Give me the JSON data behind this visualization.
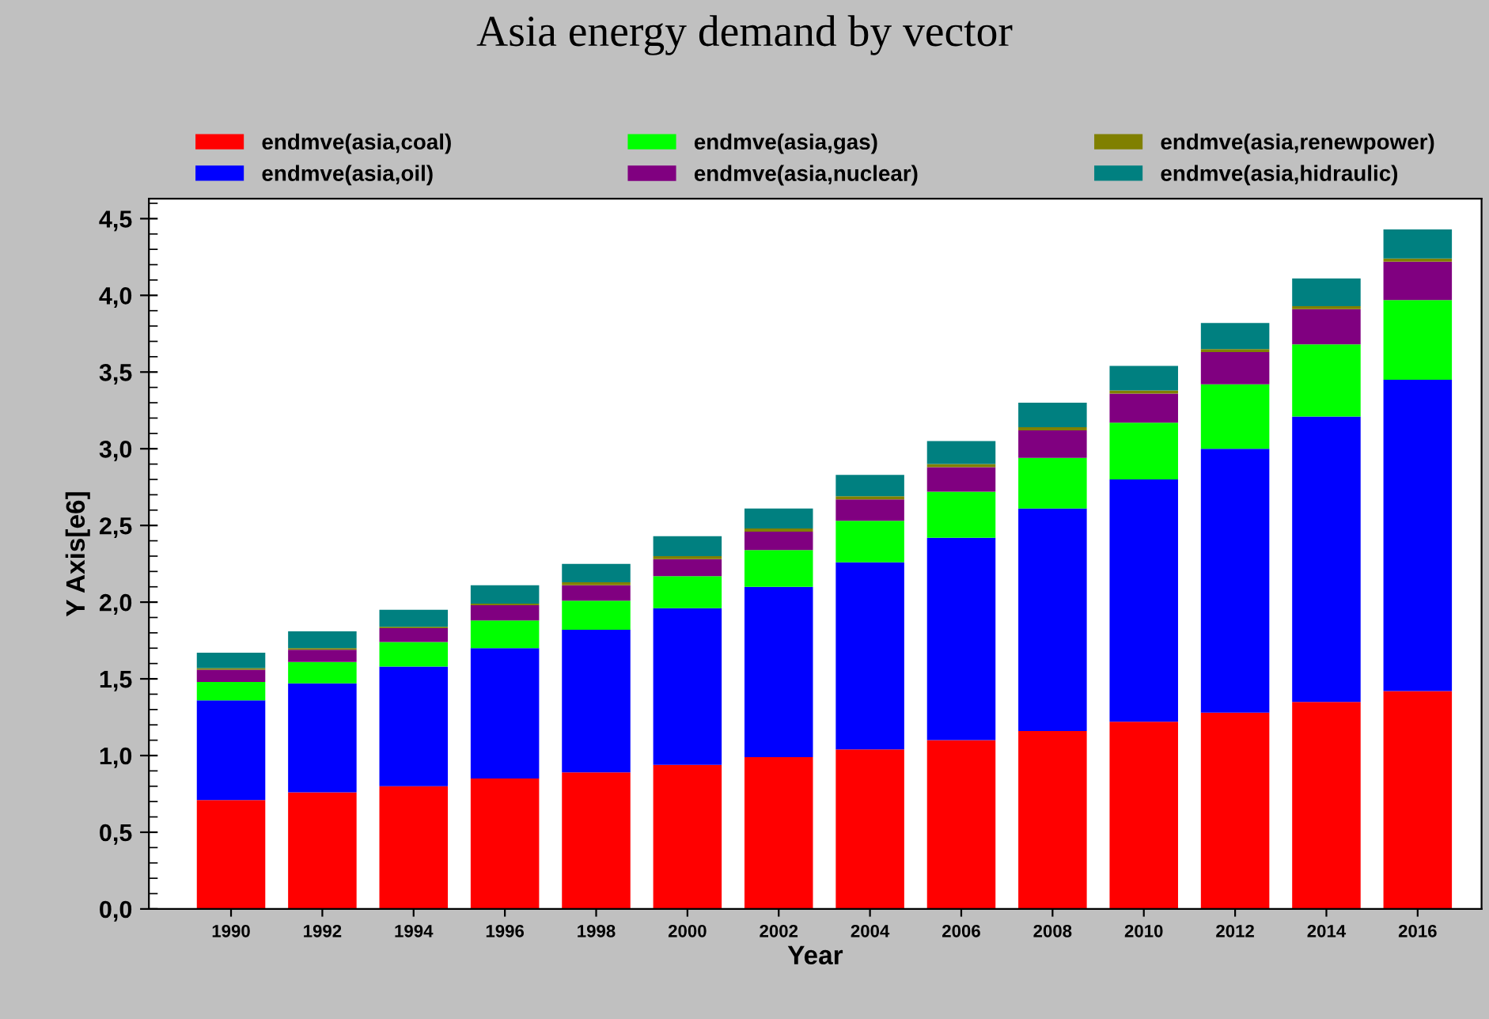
{
  "chart_data": {
    "type": "bar",
    "title": "Asia energy demand by vector",
    "xlabel": "Year",
    "ylabel": "Y Axis[e6]",
    "categories": [
      "1990",
      "1992",
      "1994",
      "1996",
      "1998",
      "2000",
      "2002",
      "2004",
      "2006",
      "2008",
      "2010",
      "2012",
      "2014",
      "2016"
    ],
    "stacked": true,
    "series": [
      {
        "name": "endmve(asia,coal)",
        "color": "#ff0000",
        "values": [
          0.71,
          0.76,
          0.8,
          0.85,
          0.89,
          0.94,
          0.99,
          1.04,
          1.1,
          1.16,
          1.22,
          1.28,
          1.35,
          1.42
        ]
      },
      {
        "name": "endmve(asia,oil)",
        "color": "#0000ff",
        "values": [
          0.65,
          0.71,
          0.78,
          0.85,
          0.93,
          1.02,
          1.11,
          1.22,
          1.32,
          1.45,
          1.58,
          1.72,
          1.86,
          2.03
        ]
      },
      {
        "name": "endmve(asia,gas)",
        "color": "#00ff00",
        "values": [
          0.12,
          0.14,
          0.16,
          0.18,
          0.19,
          0.21,
          0.24,
          0.27,
          0.3,
          0.33,
          0.37,
          0.42,
          0.47,
          0.52
        ]
      },
      {
        "name": "endmve(asia,nuclear)",
        "color": "#800080",
        "values": [
          0.08,
          0.08,
          0.09,
          0.1,
          0.1,
          0.11,
          0.12,
          0.14,
          0.16,
          0.18,
          0.19,
          0.21,
          0.23,
          0.25
        ]
      },
      {
        "name": "endmve(asia,renewpower)",
        "color": "#808000",
        "values": [
          0.01,
          0.01,
          0.01,
          0.01,
          0.02,
          0.02,
          0.02,
          0.02,
          0.02,
          0.02,
          0.02,
          0.02,
          0.02,
          0.02
        ]
      },
      {
        "name": "endmve(asia,hidraulic)",
        "color": "#008080",
        "values": [
          0.1,
          0.11,
          0.11,
          0.12,
          0.12,
          0.13,
          0.13,
          0.14,
          0.15,
          0.16,
          0.16,
          0.17,
          0.18,
          0.19
        ]
      }
    ],
    "ylim": [
      0,
      4.63
    ],
    "yticks": [
      {
        "value": 0,
        "label": "0,0"
      },
      {
        "value": 0.5,
        "label": "0,5"
      },
      {
        "value": 1,
        "label": "1,0"
      },
      {
        "value": 1.5,
        "label": "1,5"
      },
      {
        "value": 2,
        "label": "2,0"
      },
      {
        "value": 2.5,
        "label": "2,5"
      },
      {
        "value": 3,
        "label": "3,0"
      },
      {
        "value": 3.5,
        "label": "3,5"
      },
      {
        "value": 4,
        "label": "4,0"
      },
      {
        "value": 4.5,
        "label": "4,5"
      }
    ],
    "grid": false,
    "legend": "top"
  }
}
